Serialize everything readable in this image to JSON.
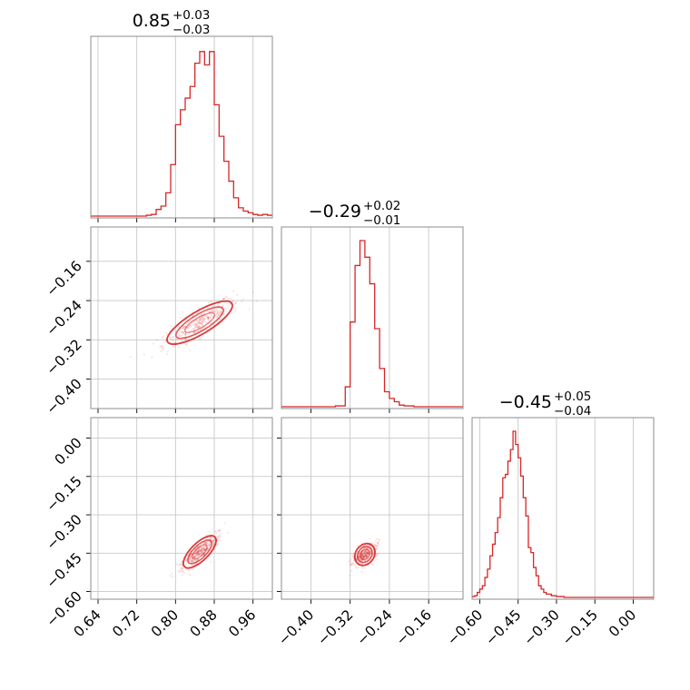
{
  "chart_data": {
    "type": "corner",
    "color": "#d62728",
    "parameters": [
      "p0",
      "p1",
      "p2"
    ],
    "axis_ranges": {
      "p0": [
        0.625,
        1.0
      ],
      "p1": [
        -0.46,
        -0.09
      ],
      "p2": [
        -0.63,
        0.08
      ]
    },
    "grid": true,
    "titles": [
      {
        "median": "0.85",
        "plus": "+0.03",
        "minus": "−0.03"
      },
      {
        "median": "−0.29",
        "plus": "+0.02",
        "minus": "−0.01"
      },
      {
        "median": "−0.45",
        "plus": "+0.05",
        "minus": "−0.04"
      }
    ],
    "ticks": {
      "p0": {
        "values": [
          0.64,
          0.72,
          0.8,
          0.88,
          0.96
        ],
        "labels": [
          "0.64",
          "0.72",
          "0.80",
          "0.88",
          "0.96"
        ]
      },
      "p1": {
        "values": [
          -0.4,
          -0.32,
          -0.24,
          -0.16
        ],
        "labels": [
          "−0.40",
          "−0.32",
          "−0.24",
          "−0.16"
        ]
      },
      "p2": {
        "values": [
          -0.6,
          -0.45,
          -0.3,
          -0.15,
          0.0
        ],
        "labels": [
          "−0.60",
          "−0.45",
          "−0.30",
          "−0.15",
          "0.00"
        ]
      }
    },
    "histograms": [
      {
        "param": "p0",
        "edges": [
          0.64,
          0.65,
          0.66,
          0.67,
          0.68,
          0.69,
          0.7,
          0.71,
          0.72,
          0.73,
          0.74,
          0.75,
          0.76,
          0.77,
          0.78,
          0.79,
          0.8,
          0.81,
          0.82,
          0.83,
          0.84,
          0.85,
          0.86,
          0.87,
          0.88,
          0.89,
          0.9,
          0.91,
          0.92,
          0.93,
          0.94,
          0.95,
          0.96,
          0.97,
          0.98,
          0.99,
          1.0
        ],
        "counts": [
          0,
          0,
          0,
          0,
          0,
          0,
          0,
          0,
          0,
          0,
          0.005,
          0.01,
          0.04,
          0.06,
          0.14,
          0.31,
          0.55,
          0.64,
          0.71,
          0.78,
          0.92,
          0.99,
          0.91,
          0.99,
          0.67,
          0.48,
          0.33,
          0.21,
          0.11,
          0.05,
          0.03,
          0.02,
          0.01,
          0.005,
          0.01,
          0.005
        ]
      },
      {
        "param": "p1",
        "edges": [
          -0.37,
          -0.36,
          -0.35,
          -0.34,
          -0.33,
          -0.32,
          -0.31,
          -0.3,
          -0.29,
          -0.28,
          -0.27,
          -0.26,
          -0.25,
          -0.24,
          -0.23,
          -0.22,
          -0.21,
          -0.2,
          -0.19,
          -0.18,
          -0.17,
          -0.16
        ],
        "counts": [
          0,
          0,
          0.005,
          0.005,
          0.12,
          0.51,
          0.85,
          1.0,
          0.9,
          0.74,
          0.47,
          0.23,
          0.09,
          0.05,
          0.03,
          0.01,
          0.005,
          0.005,
          0,
          0,
          0
        ]
      },
      {
        "param": "p2",
        "edges": [
          -0.63,
          -0.62,
          -0.61,
          -0.6,
          -0.59,
          -0.58,
          -0.57,
          -0.56,
          -0.55,
          -0.54,
          -0.53,
          -0.52,
          -0.51,
          -0.5,
          -0.49,
          -0.48,
          -0.47,
          -0.46,
          -0.45,
          -0.44,
          -0.43,
          -0.42,
          -0.41,
          -0.4,
          -0.39,
          -0.38,
          -0.37,
          -0.36,
          -0.35,
          -0.34,
          -0.33,
          -0.32,
          -0.31,
          -0.3,
          -0.29,
          -0.28,
          -0.27,
          -0.26,
          -0.25
        ],
        "counts": [
          0.005,
          0.01,
          0.03,
          0.05,
          0.07,
          0.12,
          0.17,
          0.25,
          0.32,
          0.39,
          0.48,
          0.6,
          0.72,
          0.74,
          0.82,
          0.89,
          1.0,
          0.92,
          0.84,
          0.73,
          0.6,
          0.49,
          0.3,
          0.27,
          0.18,
          0.13,
          0.07,
          0.05,
          0.03,
          0.02,
          0.02,
          0.01,
          0.01,
          0.005,
          0.005,
          0.005,
          0,
          0
        ]
      }
    ],
    "pairs": [
      {
        "x": "p0",
        "y": "p1",
        "center": [
          0.85,
          -0.285
        ],
        "slope": 0.59,
        "sigma_along": 0.035,
        "sigma_perp": 0.007,
        "sigma_x_extent": [
          0.76,
          0.98
        ]
      },
      {
        "x": "p0",
        "y": "p2",
        "center": [
          0.85,
          -0.445
        ],
        "slope": 1.86,
        "sigma_along": 0.03,
        "sigma_perp": 0.006,
        "sigma_x_extent": [
          0.75,
          0.96
        ]
      },
      {
        "x": "p1",
        "y": "p2",
        "center": [
          -0.29,
          -0.455
        ],
        "slope": 2.8,
        "sigma_along": 0.018,
        "sigma_perp": 0.006,
        "sigma_x_extent": [
          -0.33,
          -0.21
        ]
      }
    ]
  }
}
